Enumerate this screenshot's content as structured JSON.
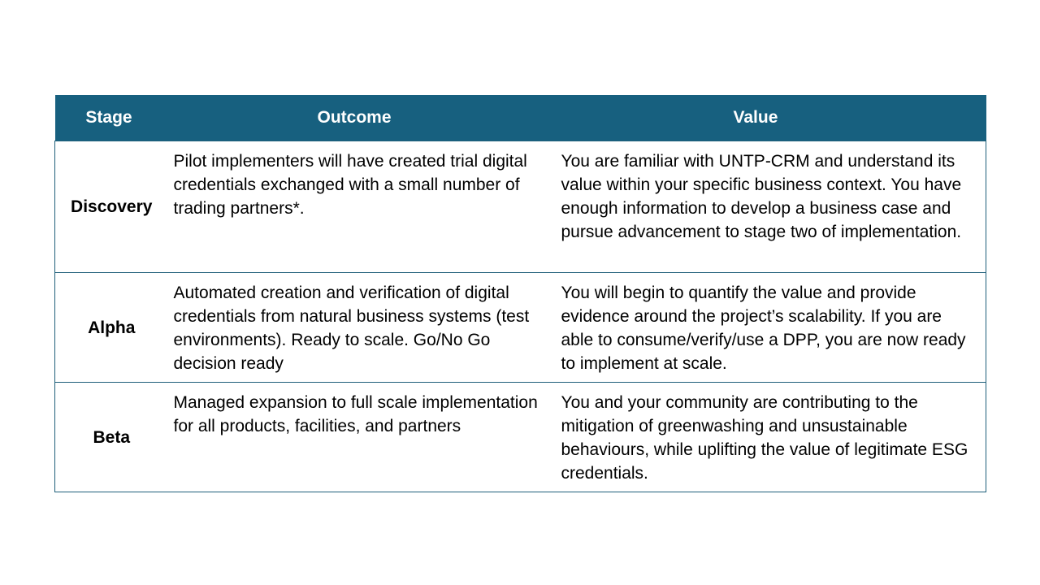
{
  "table": {
    "headers": {
      "stage": "Stage",
      "outcome": "Outcome",
      "value": "Value"
    },
    "rows": [
      {
        "stage": "Discovery",
        "outcome": "Pilot implementers will have created trial digital credentials exchanged with a small number of trading partners*.",
        "value": "You are familiar with UNTP-CRM and understand its value within your specific business context. You have enough information to develop a business case and pursue advancement to stage two of implementation."
      },
      {
        "stage": "Alpha",
        "outcome": "Automated creation and verification of digital credentials from natural business systems (test environments). Ready to scale. Go/No Go decision ready",
        "value": "You will begin to quantify the value and provide evidence around the project’s scalability. If you are able to consume/verify/use a DPP, you are now ready to implement at scale."
      },
      {
        "stage": "Beta",
        "outcome": "Managed expansion to full scale implementation for all products, facilities, and partners",
        "value": "You and your community are contributing to the mitigation of greenwashing and unsustainable behaviours, while uplifting the value of legitimate ESG credentials."
      }
    ]
  },
  "colors": {
    "header_bg": "#17607f",
    "header_text": "#ffffff",
    "border": "#1f5f7a"
  }
}
